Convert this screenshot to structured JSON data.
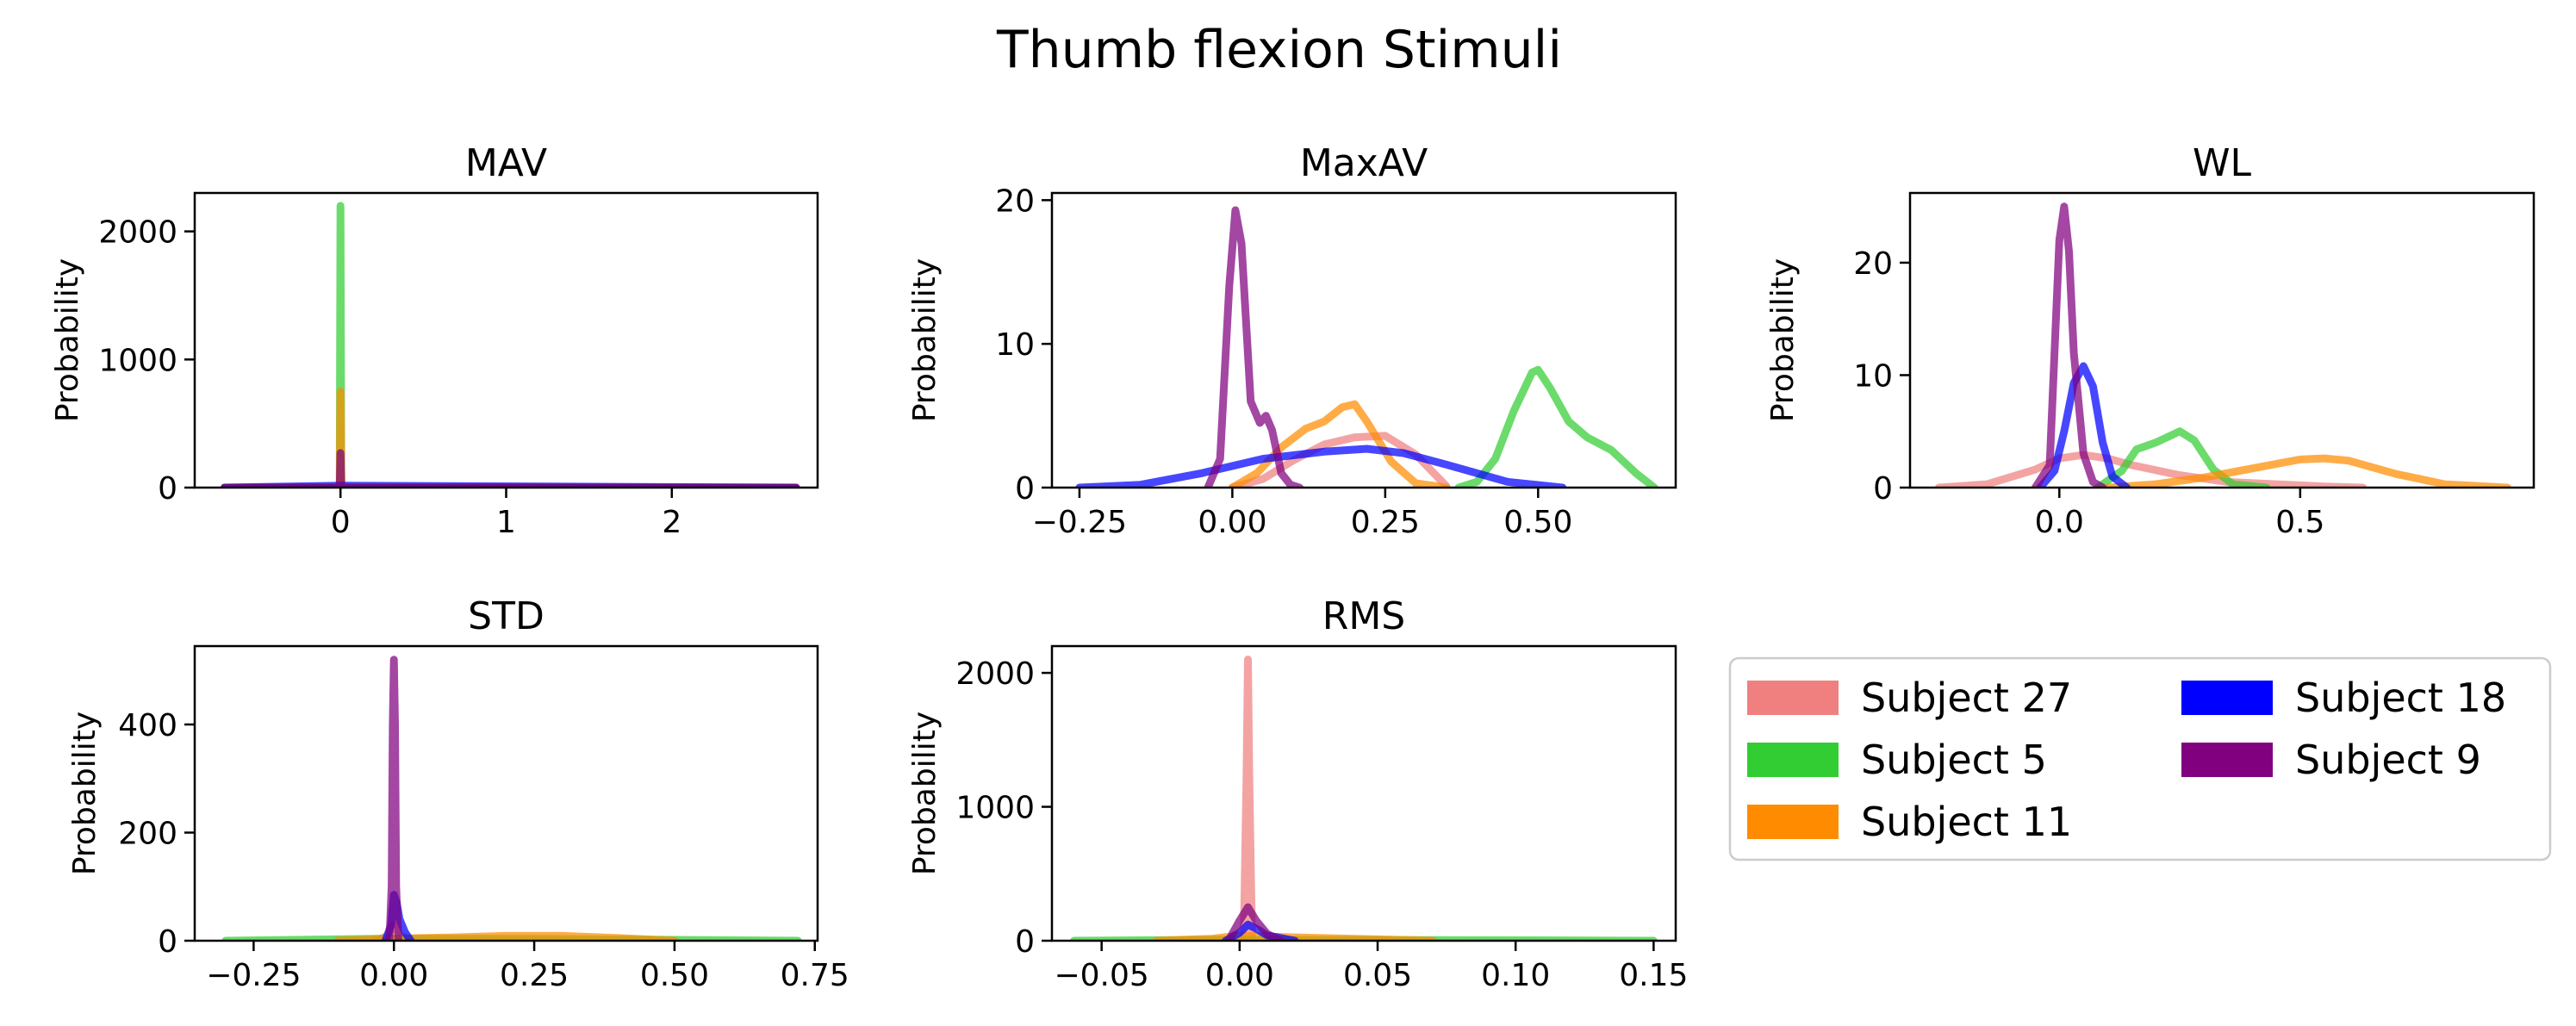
{
  "figure": {
    "title": "Thumb flexion Stimuli"
  },
  "legend": {
    "placement": "right of lower row",
    "columns": 2,
    "entries": [
      {
        "label": "Subject 27",
        "color": "#f08080"
      },
      {
        "label": "Subject 5",
        "color": "#32cd32"
      },
      {
        "label": "Subject 11",
        "color": "#ff8c00"
      },
      {
        "label": "Subject 18",
        "color": "#0000ff"
      },
      {
        "label": "Subject 9",
        "color": "#800080"
      }
    ]
  },
  "chart_data": [
    {
      "type": "line",
      "title": "MAV",
      "ylabel": "Probability",
      "xlim": [
        -0.88,
        2.88
      ],
      "ylim": [
        0,
        2300
      ],
      "xticks": [
        0,
        1,
        2
      ],
      "xtick_labels": [
        "0",
        "1",
        "2"
      ],
      "yticks": [
        0,
        1000,
        2000
      ],
      "ytick_labels": [
        "0",
        "1000",
        "2000"
      ],
      "grid": false,
      "series": [
        {
          "subject": "Subject 27",
          "color": "#f08080",
          "x": [
            -0.7,
            -0.005,
            0,
            0.005,
            2.75
          ],
          "y": [
            0,
            0,
            60,
            0,
            0
          ]
        },
        {
          "subject": "Subject 5",
          "color": "#32cd32",
          "x": [
            -0.7,
            -0.005,
            0,
            0.005,
            2.75
          ],
          "y": [
            0,
            0,
            2200,
            0,
            0
          ]
        },
        {
          "subject": "Subject 11",
          "color": "#ff8c00",
          "x": [
            -0.7,
            -0.005,
            0,
            0.005,
            2.75
          ],
          "y": [
            0,
            0,
            750,
            0,
            0
          ]
        },
        {
          "subject": "Subject 18",
          "color": "#0000ff",
          "x": [
            -0.7,
            0,
            2.75
          ],
          "y": [
            0,
            15,
            0
          ]
        },
        {
          "subject": "Subject 9",
          "color": "#800080",
          "x": [
            -0.7,
            -0.005,
            0,
            0.005,
            2.75
          ],
          "y": [
            0,
            0,
            270,
            0,
            0
          ]
        }
      ]
    },
    {
      "type": "line",
      "title": "MaxAV",
      "ylabel": "Probability",
      "xlim": [
        -0.295,
        0.725
      ],
      "ylim": [
        0,
        20.5
      ],
      "xticks": [
        -0.25,
        0,
        0.25,
        0.5
      ],
      "xtick_labels": [
        "−0.25",
        "0.00",
        "0.25",
        "0.50"
      ],
      "yticks": [
        0,
        10,
        20
      ],
      "ytick_labels": [
        "0",
        "10",
        "20"
      ],
      "grid": false,
      "series": [
        {
          "subject": "Subject 27",
          "color": "#f08080",
          "x": [
            0.0,
            0.05,
            0.1,
            0.15,
            0.2,
            0.25,
            0.3,
            0.35
          ],
          "y": [
            0.0,
            0.6,
            1.9,
            3.0,
            3.5,
            3.6,
            2.3,
            0.1
          ]
        },
        {
          "subject": "Subject 5",
          "color": "#32cd32",
          "x": [
            0.37,
            0.4,
            0.43,
            0.46,
            0.49,
            0.5,
            0.52,
            0.55,
            0.58,
            0.62,
            0.66,
            0.69
          ],
          "y": [
            0.0,
            0.4,
            2.0,
            5.3,
            8.0,
            8.2,
            6.9,
            4.6,
            3.5,
            2.6,
            1.0,
            0.0
          ]
        },
        {
          "subject": "Subject 11",
          "color": "#ff8c00",
          "x": [
            0.0,
            0.04,
            0.08,
            0.12,
            0.15,
            0.18,
            0.2,
            0.22,
            0.26,
            0.3,
            0.35
          ],
          "y": [
            0.0,
            1.0,
            2.8,
            4.1,
            4.6,
            5.6,
            5.8,
            4.6,
            1.8,
            0.3,
            0.0
          ]
        },
        {
          "subject": "Subject 18",
          "color": "#0000ff",
          "x": [
            -0.25,
            -0.15,
            -0.05,
            0.05,
            0.15,
            0.22,
            0.28,
            0.35,
            0.45,
            0.54
          ],
          "y": [
            0.0,
            0.2,
            1.0,
            2.0,
            2.5,
            2.7,
            2.4,
            1.6,
            0.4,
            0.0
          ]
        },
        {
          "subject": "Subject 9",
          "color": "#800080",
          "x": [
            -0.04,
            -0.02,
            -0.005,
            0.005,
            0.015,
            0.03,
            0.045,
            0.055,
            0.065,
            0.08,
            0.095,
            0.11
          ],
          "y": [
            0.0,
            2.0,
            14.0,
            19.3,
            17.0,
            6.0,
            4.5,
            5.0,
            4.0,
            1.0,
            0.2,
            0.0
          ]
        }
      ]
    },
    {
      "type": "line",
      "title": "WL",
      "ylabel": "Probability",
      "xlim": [
        -0.31,
        0.985
      ],
      "ylim": [
        0,
        26.2
      ],
      "xticks": [
        0,
        0.5
      ],
      "xtick_labels": [
        "0.0",
        "0.5"
      ],
      "yticks": [
        0,
        10,
        20
      ],
      "ytick_labels": [
        "0",
        "10",
        "20"
      ],
      "grid": false,
      "series": [
        {
          "subject": "Subject 27",
          "color": "#f08080",
          "x": [
            -0.25,
            -0.15,
            -0.05,
            0.0,
            0.05,
            0.1,
            0.15,
            0.25,
            0.35,
            0.45,
            0.55,
            0.63
          ],
          "y": [
            0.0,
            0.3,
            1.6,
            2.6,
            2.9,
            2.6,
            2.0,
            1.1,
            0.5,
            0.3,
            0.1,
            0.0
          ]
        },
        {
          "subject": "Subject 5",
          "color": "#32cd32",
          "x": [
            0.08,
            0.13,
            0.16,
            0.2,
            0.25,
            0.28,
            0.32,
            0.36,
            0.43
          ],
          "y": [
            0.0,
            1.5,
            3.4,
            4.0,
            5.0,
            4.2,
            1.6,
            0.3,
            0.0
          ]
        },
        {
          "subject": "Subject 11",
          "color": "#ff8c00",
          "x": [
            0.1,
            0.2,
            0.3,
            0.4,
            0.5,
            0.55,
            0.6,
            0.7,
            0.8,
            0.93
          ],
          "y": [
            0.0,
            0.3,
            0.9,
            1.7,
            2.5,
            2.6,
            2.4,
            1.2,
            0.3,
            0.0
          ]
        },
        {
          "subject": "Subject 18",
          "color": "#0000ff",
          "x": [
            -0.04,
            -0.01,
            0.01,
            0.03,
            0.05,
            0.07,
            0.09,
            0.11,
            0.14
          ],
          "y": [
            0.0,
            1.5,
            5.0,
            9.3,
            10.8,
            9.0,
            4.0,
            1.0,
            0.0
          ]
        },
        {
          "subject": "Subject 9",
          "color": "#800080",
          "x": [
            -0.05,
            -0.02,
            -0.01,
            0.0,
            0.01,
            0.02,
            0.03,
            0.05,
            0.07,
            0.09
          ],
          "y": [
            0.0,
            2.0,
            12.0,
            22.0,
            25.0,
            21.0,
            12.0,
            3.0,
            0.5,
            0.0
          ]
        }
      ]
    },
    {
      "type": "line",
      "title": "STD",
      "ylabel": "Probability",
      "xlim": [
        -0.355,
        0.755
      ],
      "ylim": [
        0,
        545
      ],
      "xticks": [
        -0.25,
        0,
        0.25,
        0.5,
        0.75
      ],
      "xtick_labels": [
        "−0.25",
        "0.00",
        "0.25",
        "0.50",
        "0.75"
      ],
      "yticks": [
        0,
        200,
        400
      ],
      "ytick_labels": [
        "0",
        "200",
        "400"
      ],
      "grid": false,
      "series": [
        {
          "subject": "Subject 27",
          "color": "#f08080",
          "x": [
            -0.03,
            -0.01,
            0.0,
            0.01,
            0.03
          ],
          "y": [
            0,
            10,
            30,
            10,
            0
          ]
        },
        {
          "subject": "Subject 5",
          "color": "#32cd32",
          "x": [
            -0.3,
            0.0,
            0.3,
            0.72
          ],
          "y": [
            0.0,
            4.0,
            3.0,
            0.0
          ]
        },
        {
          "subject": "Subject 11",
          "color": "#ff8c00",
          "x": [
            -0.1,
            0.0,
            0.1,
            0.2,
            0.3,
            0.4,
            0.5
          ],
          "y": [
            0.0,
            4.0,
            6.0,
            9.0,
            9.0,
            5.0,
            0.0
          ]
        },
        {
          "subject": "Subject 18",
          "color": "#0000ff",
          "x": [
            -0.015,
            -0.005,
            0.0,
            0.005,
            0.01,
            0.02,
            0.03
          ],
          "y": [
            0,
            30,
            85,
            70,
            40,
            15,
            0
          ]
        },
        {
          "subject": "Subject 9",
          "color": "#800080",
          "x": [
            -0.008,
            -0.004,
            -0.002,
            0.0,
            0.002,
            0.004,
            0.008
          ],
          "y": [
            0,
            100,
            400,
            520,
            400,
            100,
            0
          ]
        }
      ]
    },
    {
      "type": "line",
      "title": "RMS",
      "ylabel": "Probability",
      "xlim": [
        -0.068,
        0.158
      ],
      "ylim": [
        0,
        2200
      ],
      "xticks": [
        -0.05,
        0,
        0.05,
        0.1,
        0.15
      ],
      "xtick_labels": [
        "−0.05",
        "0.00",
        "0.05",
        "0.10",
        "0.15"
      ],
      "yticks": [
        0,
        1000,
        2000
      ],
      "ytick_labels": [
        "0",
        "1000",
        "2000"
      ],
      "grid": false,
      "series": [
        {
          "subject": "Subject 27",
          "color": "#f08080",
          "x": [
            0.0015,
            0.0025,
            0.003,
            0.0035,
            0.0045
          ],
          "y": [
            0,
            1200,
            2100,
            1200,
            0
          ]
        },
        {
          "subject": "Subject 5",
          "color": "#32cd32",
          "x": [
            -0.06,
            0.0,
            0.05,
            0.1,
            0.15
          ],
          "y": [
            0,
            8,
            6,
            3,
            0
          ]
        },
        {
          "subject": "Subject 11",
          "color": "#ff8c00",
          "x": [
            -0.03,
            -0.01,
            0.0,
            0.01,
            0.03,
            0.05,
            0.07
          ],
          "y": [
            0,
            15,
            40,
            30,
            20,
            10,
            0
          ]
        },
        {
          "subject": "Subject 18",
          "color": "#0000ff",
          "x": [
            -0.005,
            0.0,
            0.003,
            0.006,
            0.01,
            0.02
          ],
          "y": [
            0,
            60,
            120,
            90,
            40,
            0
          ]
        },
        {
          "subject": "Subject 9",
          "color": "#800080",
          "x": [
            -0.004,
            0.0,
            0.003,
            0.006,
            0.01,
            0.015
          ],
          "y": [
            0,
            150,
            250,
            150,
            50,
            0
          ]
        }
      ]
    }
  ]
}
